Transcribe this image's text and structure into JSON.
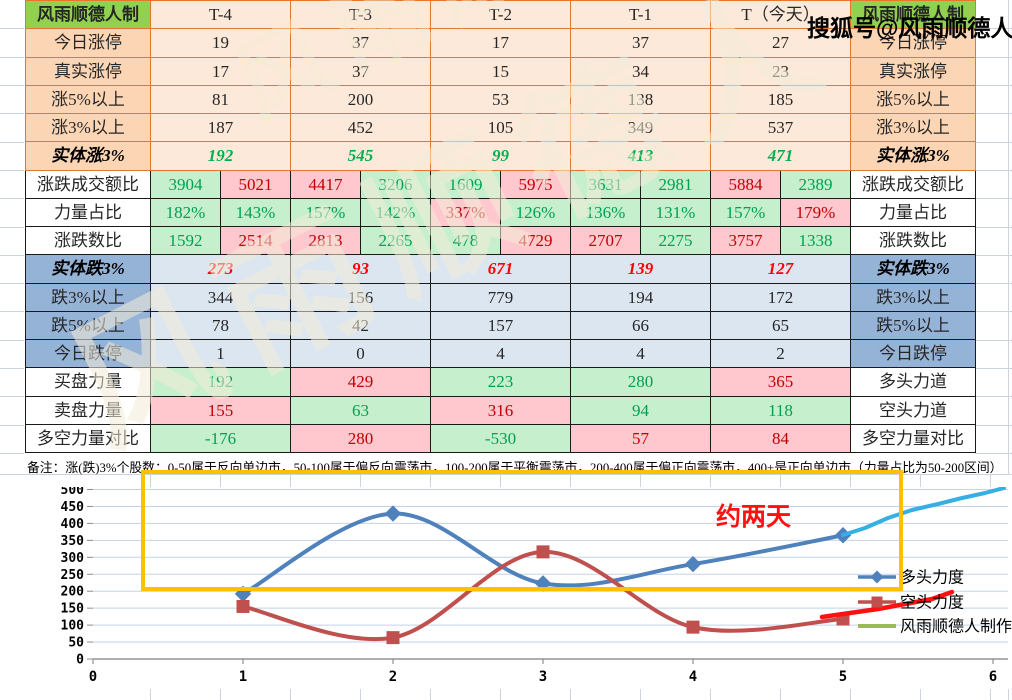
{
  "watermark_sohu": "搜狐号@风雨顺德人",
  "watermark_diagonal": "风雨顺德人",
  "table": {
    "header": {
      "left": "风雨顺德人制",
      "cols": [
        "T-4",
        "T-3",
        "T-2",
        "T-1",
        "T（今天）"
      ],
      "right": "风雨顺德人制"
    },
    "rows": [
      {
        "kind": "simple",
        "sec": "peach",
        "label": "今日涨停",
        "right": "今日涨停",
        "values": [
          "19",
          "37",
          "17",
          "37",
          "27"
        ]
      },
      {
        "kind": "simple",
        "sec": "peach",
        "label": "真实涨停",
        "right": "真实涨停",
        "values": [
          "17",
          "37",
          "15",
          "34",
          "23"
        ]
      },
      {
        "kind": "simple",
        "sec": "peach",
        "label": "涨5%以上",
        "right": "涨5%以上",
        "values": [
          "81",
          "200",
          "53",
          "138",
          "185"
        ]
      },
      {
        "kind": "simple",
        "sec": "peach",
        "label": "涨3%以上",
        "right": "涨3%以上",
        "values": [
          "187",
          "452",
          "105",
          "349",
          "537"
        ]
      },
      {
        "kind": "simple",
        "sec": "peach",
        "style": "itg",
        "labstyle": "itb",
        "label": "实体涨3%",
        "right": "实体涨3%",
        "values": [
          "192",
          "545",
          "99",
          "413",
          "471"
        ]
      },
      {
        "kind": "pair",
        "label": "涨跌成交额比",
        "right": "涨跌成交额比",
        "pairs": [
          [
            [
              "3904",
              "g"
            ],
            [
              "5021",
              "r"
            ]
          ],
          [
            [
              "4417",
              "r"
            ],
            [
              "3206",
              "g"
            ]
          ],
          [
            [
              "1609",
              "g"
            ],
            [
              "5975",
              "r"
            ]
          ],
          [
            [
              "3631",
              "g"
            ],
            [
              "2981",
              "g"
            ]
          ],
          [
            [
              "5884",
              "r"
            ],
            [
              "2389",
              "g"
            ]
          ]
        ]
      },
      {
        "kind": "pair",
        "label": "力量占比",
        "right": "力量占比",
        "pairs": [
          [
            [
              "182%",
              "g"
            ],
            [
              "143%",
              "g"
            ]
          ],
          [
            [
              "157%",
              "g"
            ],
            [
              "142%",
              "g"
            ]
          ],
          [
            [
              "337%",
              "r"
            ],
            [
              "126%",
              "g"
            ]
          ],
          [
            [
              "136%",
              "g"
            ],
            [
              "131%",
              "g"
            ]
          ],
          [
            [
              "157%",
              "g"
            ],
            [
              "179%",
              "r"
            ]
          ]
        ]
      },
      {
        "kind": "pair",
        "label": "涨跌数比",
        "right": "涨跌数比",
        "pairs": [
          [
            [
              "1592",
              "g"
            ],
            [
              "2514",
              "r"
            ]
          ],
          [
            [
              "2813",
              "r"
            ],
            [
              "2265",
              "g"
            ]
          ],
          [
            [
              "478",
              "g"
            ],
            [
              "4729",
              "r"
            ]
          ],
          [
            [
              "2707",
              "r"
            ],
            [
              "2275",
              "g"
            ]
          ],
          [
            [
              "3757",
              "r"
            ],
            [
              "1338",
              "g"
            ]
          ]
        ]
      },
      {
        "kind": "simple",
        "sec": "blue",
        "style": "itr",
        "labstyle": "itb",
        "label": "实体跌3%",
        "right": "实体跌3%",
        "values": [
          "273",
          "93",
          "671",
          "139",
          "127"
        ]
      },
      {
        "kind": "simple",
        "sec": "blue",
        "label": "跌3%以上",
        "right": "跌3%以上",
        "values": [
          "344",
          "156",
          "779",
          "194",
          "172"
        ]
      },
      {
        "kind": "simple",
        "sec": "blue",
        "label": "跌5%以上",
        "right": "跌5%以上",
        "values": [
          "78",
          "42",
          "157",
          "66",
          "65"
        ]
      },
      {
        "kind": "simple",
        "sec": "blue",
        "label": "今日跌停",
        "right": "今日跌停",
        "values": [
          "1",
          "0",
          "4",
          "4",
          "2"
        ]
      },
      {
        "kind": "single",
        "label": "买盘力量",
        "right": "多头力道",
        "cells": [
          [
            "192",
            "g"
          ],
          [
            "429",
            "r"
          ],
          [
            "223",
            "g"
          ],
          [
            "280",
            "g"
          ],
          [
            "365",
            "r"
          ]
        ]
      },
      {
        "kind": "single",
        "label": "卖盘力量",
        "right": "空头力道",
        "cells": [
          [
            "155",
            "r"
          ],
          [
            "63",
            "g"
          ],
          [
            "316",
            "r"
          ],
          [
            "94",
            "g"
          ],
          [
            "118",
            "g"
          ]
        ]
      },
      {
        "kind": "single",
        "label": "多空力量对比",
        "right": "多空力量对比",
        "cells": [
          [
            "-176",
            "g"
          ],
          [
            "280",
            "r"
          ],
          [
            "-530",
            "g"
          ],
          [
            "57",
            "r"
          ],
          [
            "84",
            "r"
          ]
        ]
      }
    ],
    "note": "备注：涨(跌)3%个股数：0-50属于反向单边市，50-100属于偏反向震荡市，100-200属于平衡震荡市，200-400属于偏正向震荡市，400+是正向单边市（力量占比为50-200区间）"
  },
  "chart_data": {
    "type": "line",
    "x": [
      1,
      2,
      3,
      4,
      5
    ],
    "series": [
      {
        "name": "多头力度",
        "color": "#4F81BD",
        "marker": "diamond",
        "values": [
          192,
          429,
          223,
          280,
          365
        ]
      },
      {
        "name": "空头力度",
        "color": "#C0504D",
        "marker": "square",
        "values": [
          155,
          63,
          316,
          94,
          118
        ]
      },
      {
        "name": "风雨顺德人制作",
        "color": "#9BBB59",
        "marker": "none",
        "values": []
      }
    ],
    "xlim": [
      0,
      6
    ],
    "ylim": [
      0,
      500
    ],
    "ytick": 50,
    "grid": "horizontal",
    "legend_position": "right",
    "annotations": {
      "label": "约两天",
      "label_color": "#FF1111",
      "rect_color": "#FFC000",
      "hand_blue_color": "#35AFE4",
      "hand_red_color": "#FF1111"
    }
  }
}
